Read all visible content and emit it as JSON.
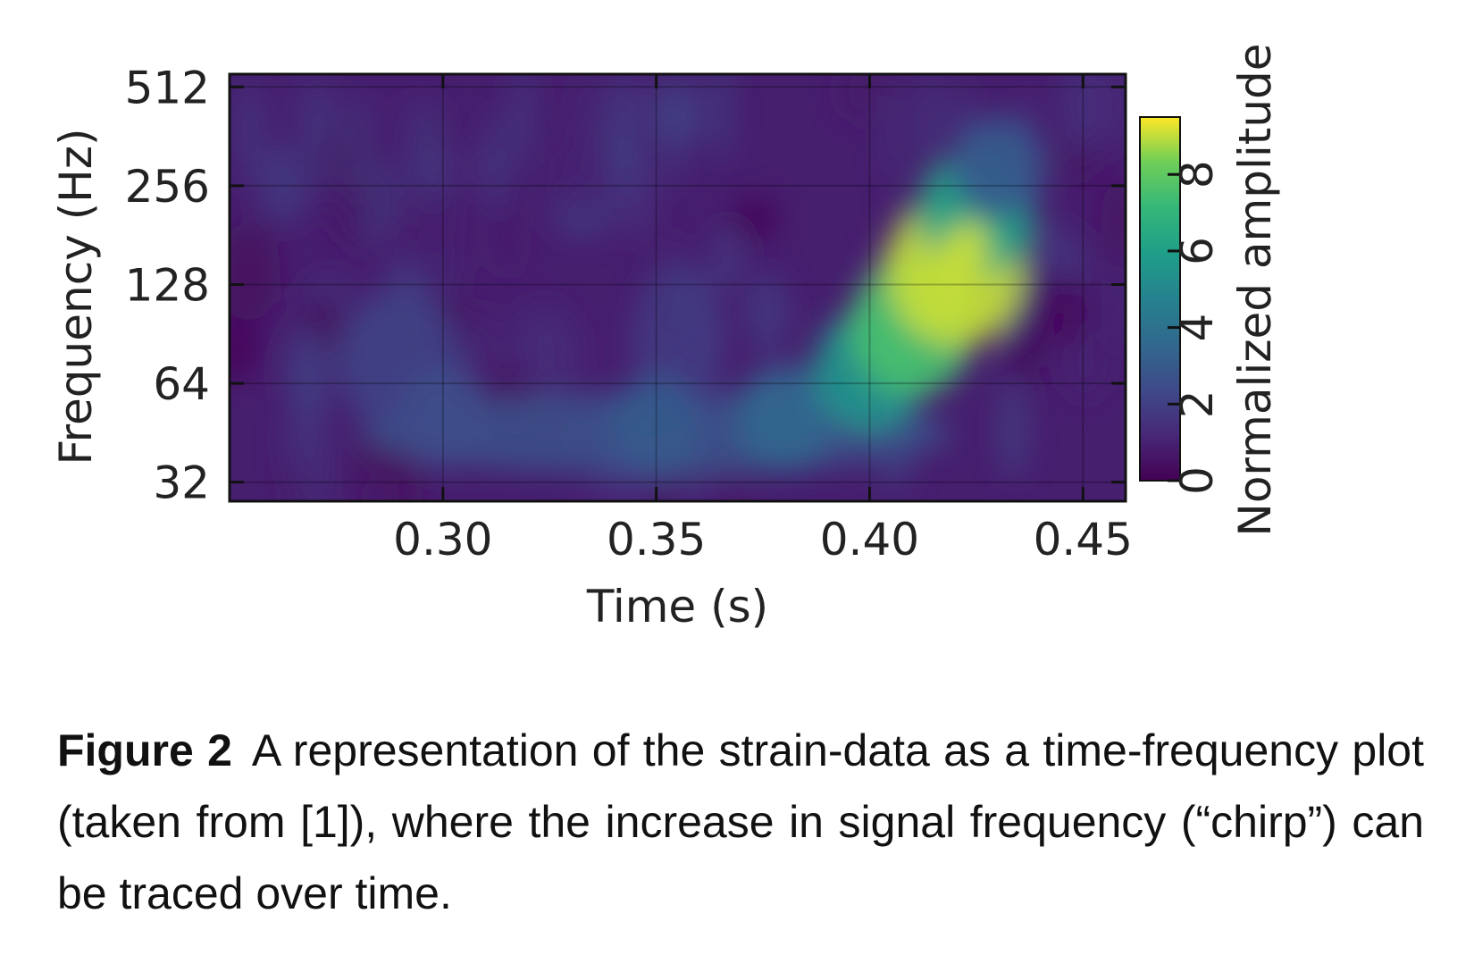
{
  "chart_data": {
    "type": "heatmap",
    "xlabel": "Time (s)",
    "ylabel": "Frequency (Hz)",
    "colorbar_label": "Normalized amplitude",
    "colormap": "viridis",
    "xlim": [
      0.25,
      0.46
    ],
    "ylim": [
      28,
      560
    ],
    "y_scale": "log2",
    "grid": true,
    "x_ticks": [
      0.3,
      0.35,
      0.4,
      0.45
    ],
    "x_tick_labels": [
      "0.30",
      "0.35",
      "0.40",
      "0.45"
    ],
    "y_ticks": [
      32,
      64,
      128,
      256,
      512
    ],
    "y_tick_labels": [
      "32",
      "64",
      "128",
      "256",
      "512"
    ],
    "colorbar_range": [
      0,
      9.5
    ],
    "colorbar_ticks": [
      0,
      2,
      4,
      6,
      8
    ],
    "colorbar_tick_labels": [
      "0",
      "2",
      "4",
      "6",
      "8"
    ],
    "chirp_track": [
      {
        "t": 0.3,
        "f": 50,
        "amplitude": 2.5
      },
      {
        "t": 0.35,
        "f": 47,
        "amplitude": 3.0
      },
      {
        "t": 0.38,
        "f": 50,
        "amplitude": 3.5
      },
      {
        "t": 0.4,
        "f": 70,
        "amplitude": 5.5
      },
      {
        "t": 0.41,
        "f": 95,
        "amplitude": 7.5
      },
      {
        "t": 0.42,
        "f": 140,
        "amplitude": 9.0
      },
      {
        "t": 0.425,
        "f": 210,
        "amplitude": 6.0
      },
      {
        "t": 0.43,
        "f": 290,
        "amplitude": 3.0
      }
    ]
  },
  "caption": {
    "label": "Figure 2",
    "text": "A representation of the strain-data as a time-frequency plot (taken from [1]), where the increase in signal frequency (“chirp”) can be traced over time."
  },
  "colors": {
    "viridis_low": "#440154",
    "viridis_mid": "#21918c",
    "viridis_high": "#fde725",
    "background": "#ffffff"
  }
}
